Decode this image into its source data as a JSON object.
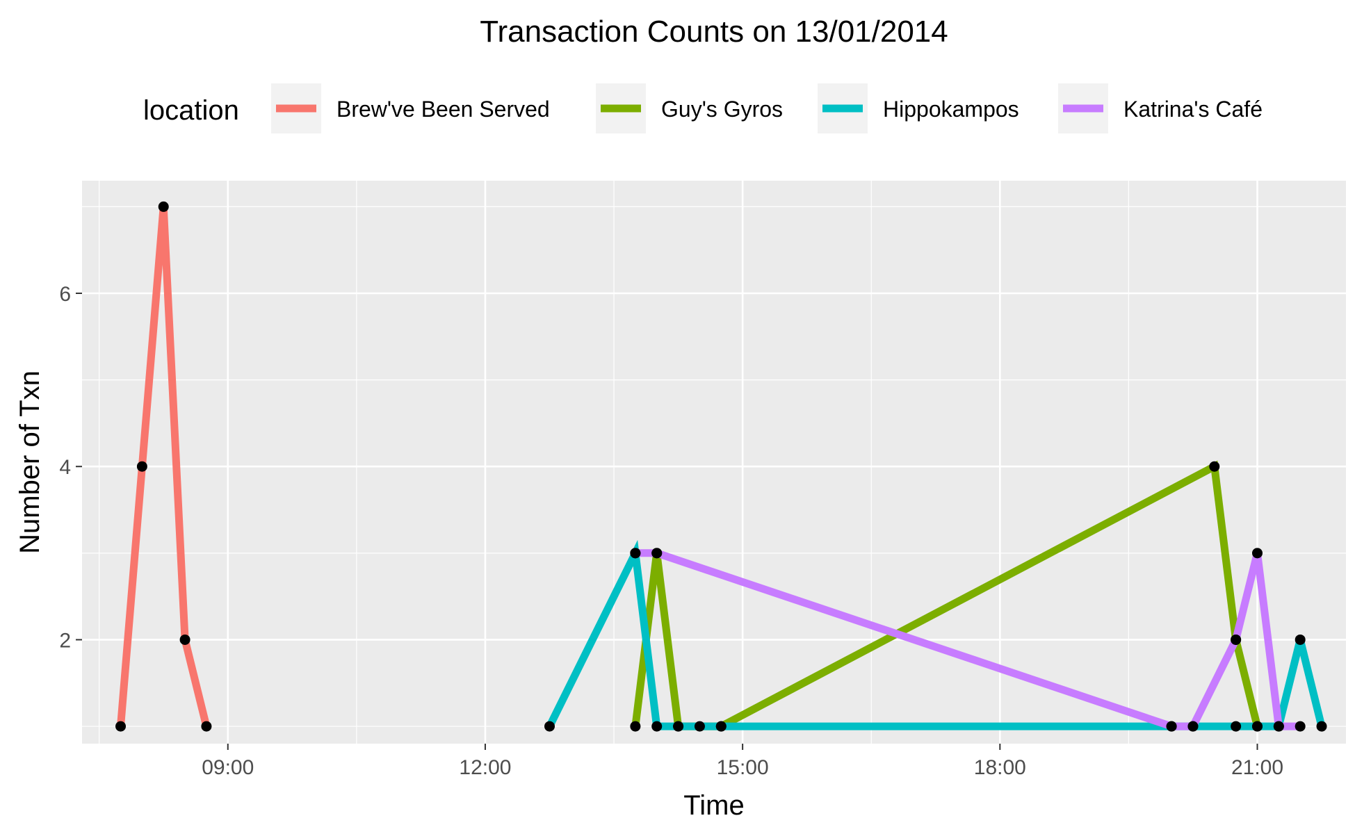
{
  "chart_data": {
    "type": "line",
    "title": "Transaction Counts on 13/01/2014",
    "xlabel": "Time",
    "ylabel": "Number of Txn",
    "legend_title": "location",
    "legend_position": "top",
    "grid": true,
    "xlim": [
      "07:18",
      "22:02"
    ],
    "ylim": [
      0.8,
      7.3
    ],
    "x_ticks": [
      "09:00",
      "12:00",
      "15:00",
      "18:00",
      "21:00"
    ],
    "y_ticks": [
      2,
      4,
      6
    ],
    "point_color": "#000000",
    "panel_background": "#ebebeb",
    "series": [
      {
        "name": "Brew've Been Served",
        "color": "#F8766D",
        "x": [
          "07:45",
          "08:00",
          "08:15",
          "08:30",
          "08:45"
        ],
        "y": [
          1,
          4,
          7,
          2,
          1
        ]
      },
      {
        "name": "Guy's Gyros",
        "color": "#7CAE00",
        "x": [
          "13:45",
          "14:00",
          "14:15",
          "14:45",
          "20:30",
          "20:45",
          "21:00"
        ],
        "y": [
          1,
          3,
          1,
          1,
          4,
          2,
          1
        ]
      },
      {
        "name": "Hippokampos",
        "color": "#00BFC4",
        "x": [
          "12:45",
          "13:45",
          "14:00",
          "14:15",
          "14:30",
          "14:45",
          "20:00",
          "20:15",
          "20:45",
          "21:00",
          "21:15",
          "21:30",
          "21:45"
        ],
        "y": [
          1,
          3,
          1,
          1,
          1,
          1,
          1,
          1,
          1,
          1,
          1,
          2,
          1
        ]
      },
      {
        "name": "Katrina's Café",
        "color": "#C77CFF",
        "x": [
          "13:45",
          "14:00",
          "20:00",
          "20:15",
          "20:45",
          "21:00",
          "21:15",
          "21:30"
        ],
        "y": [
          3,
          3,
          1,
          1,
          2,
          3,
          1,
          1
        ]
      }
    ]
  }
}
